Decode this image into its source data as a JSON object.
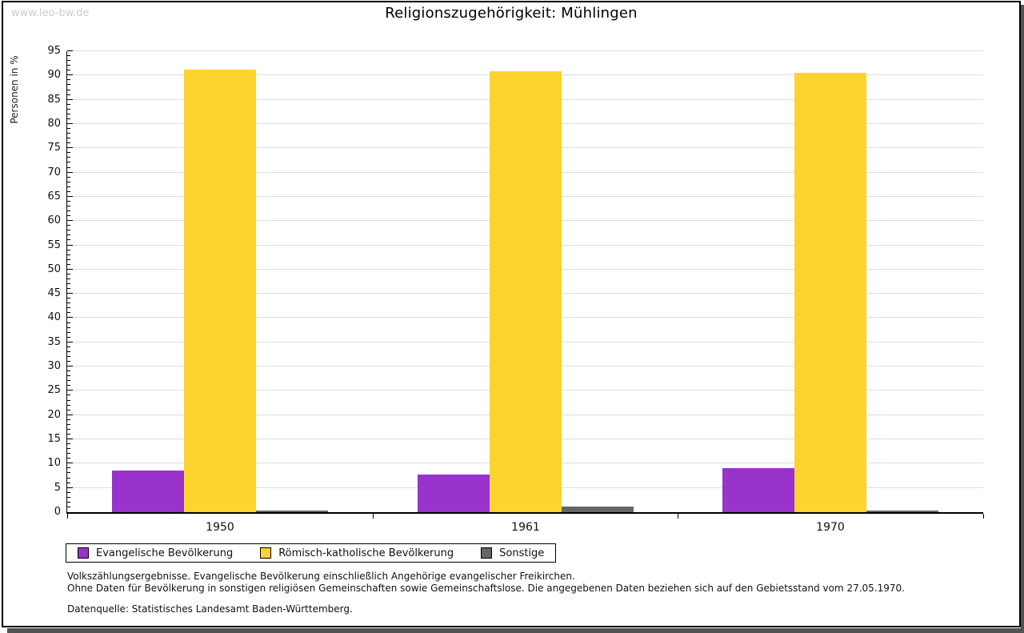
{
  "watermark": "www.leo-bw.de",
  "header": {
    "title": "Religionszugehörigkeit: Mühlingen"
  },
  "footnotes": {
    "line1": "Volkszählungsergebnisse. Evangelische Bevölkerung einschließlich Angehörige evangelischer Freikirchen.",
    "line2": "Ohne Daten für Bevölkerung in sonstigen religiösen Gemeinschaften sowie Gemeinschaftslose. Die angegebenen Daten beziehen sich auf den Gebietsstand vom 27.05.1970.",
    "source": "Datenquelle: Statistisches Landesamt Baden-Württemberg."
  },
  "chart_data": {
    "type": "bar",
    "title": "Religionszugehörigkeit: Mühlingen",
    "ylabel": "Personen in %",
    "xlabel": "",
    "categories": [
      "1950",
      "1961",
      "1970"
    ],
    "series": [
      {
        "name": "Evangelische Bevölkerung",
        "color": "#9933cc",
        "values": [
          8.5,
          7.8,
          9.0
        ]
      },
      {
        "name": "Römisch-katholische Bevölkerung",
        "color": "#fcd42d",
        "values": [
          91.2,
          90.8,
          90.6
        ]
      },
      {
        "name": "Sonstige",
        "color": "#666666",
        "values": [
          0.3,
          1.2,
          0.3
        ]
      }
    ],
    "ylim": [
      0,
      95
    ],
    "y_tick_step": 5,
    "y_minor_tick_step": 1,
    "grid": true,
    "gridline_color": "#dddddd",
    "legend_position": "bottom-left"
  }
}
